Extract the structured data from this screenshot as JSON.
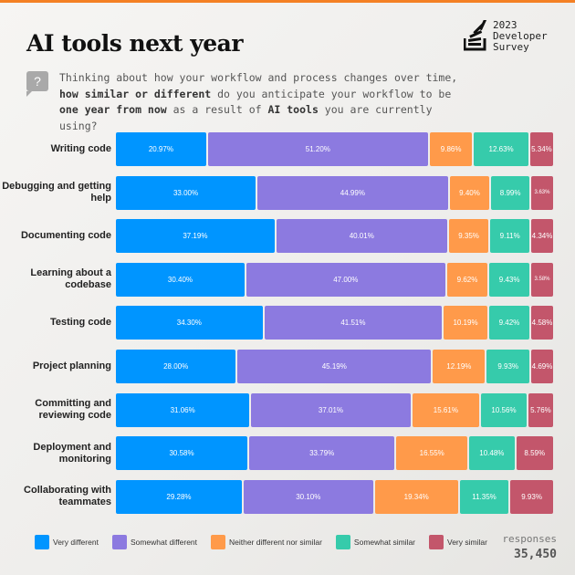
{
  "header": {
    "title": "AI tools next year",
    "logo_text": [
      "2023",
      "Developer",
      "Survey"
    ]
  },
  "question": {
    "icon": "question-mark-icon",
    "segments": [
      {
        "text": "Thinking about how your workflow and process changes over time, ",
        "bold": false
      },
      {
        "text": "how similar or different",
        "bold": true
      },
      {
        "text": " do you anticipate your workflow to be ",
        "bold": false
      },
      {
        "text": "one year from now",
        "bold": true
      },
      {
        "text": " as a result of ",
        "bold": false
      },
      {
        "text": "AI tools",
        "bold": true
      },
      {
        "text": " you are currently using?",
        "bold": false
      }
    ]
  },
  "responses": {
    "label": "responses",
    "value": "35,450"
  },
  "chart_data": {
    "type": "bar",
    "orientation": "horizontal",
    "stacked": "100%",
    "categories": [
      "Writing code",
      "Debugging and getting help",
      "Documenting code",
      "Learning about a codebase",
      "Testing code",
      "Project planning",
      "Committing and reviewing code",
      "Deployment and monitoring",
      "Collaborating with teammates"
    ],
    "series": [
      {
        "name": "Very different",
        "color": "#0095ff",
        "values": [
          20.97,
          33.0,
          37.19,
          30.4,
          34.3,
          28.0,
          31.06,
          30.58,
          29.28
        ]
      },
      {
        "name": "Somewhat different",
        "color": "#8c7ae0",
        "values": [
          51.2,
          44.99,
          40.01,
          47.0,
          41.51,
          45.19,
          37.01,
          33.79,
          30.1
        ]
      },
      {
        "name": "Neither different nor similar",
        "color": "#ff9a4a",
        "values": [
          9.86,
          9.4,
          9.35,
          9.62,
          10.19,
          12.19,
          15.61,
          16.55,
          19.34
        ]
      },
      {
        "name": "Somewhat similar",
        "color": "#36cbab",
        "values": [
          12.63,
          8.99,
          9.11,
          9.43,
          9.42,
          9.93,
          10.56,
          10.48,
          11.35
        ]
      },
      {
        "name": "Very similar",
        "color": "#c3566b",
        "values": [
          5.34,
          3.63,
          4.34,
          3.58,
          4.58,
          4.69,
          5.76,
          8.59,
          9.93
        ]
      }
    ],
    "legend": "bottom",
    "grid": false
  }
}
